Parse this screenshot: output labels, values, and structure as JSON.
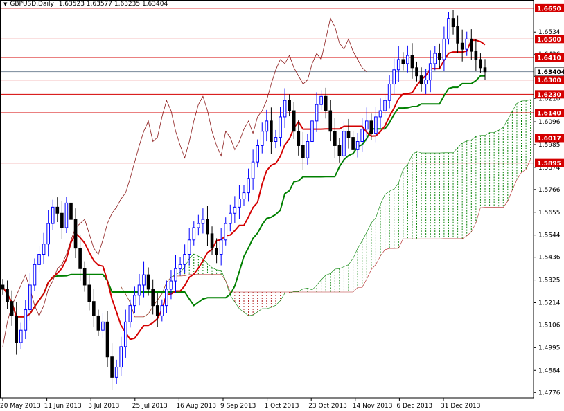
{
  "header": {
    "symbol": "GBPUSD,Daily",
    "ohlc": "1.63523 1.63577 1.63235 1.63404"
  },
  "colors": {
    "background": "#ffffff",
    "bull_candle": "#0000ff",
    "bear_candle": "#000000",
    "tenkan": "#d40000",
    "kijun": "#008000",
    "chikou": "#8b1a1a",
    "cloud_bull": "#008000",
    "cloud_bear": "#b22222",
    "level_line": "#d40000",
    "current_line": "#778899"
  },
  "chart_data": {
    "type": "candlestick",
    "indicator": "Ichimoku Kinko Hyo",
    "x_tick_labels": [
      "20 May 2013",
      "11 Jun 2013",
      "3 Jul 2013",
      "25 Jul 2013",
      "16 Aug 2013",
      "9 Sep 2013",
      "1 Oct 2013",
      "23 Oct 2013",
      "14 Nov 2013",
      "6 Dec 2013",
      "31 Dec 2013"
    ],
    "y_tick_labels": [
      1.6534,
      1.6426,
      1.6318,
      1.621,
      1.6096,
      1.5985,
      1.5874,
      1.5766,
      1.5655,
      1.5544,
      1.5436,
      1.5325,
      1.5214,
      1.5106,
      1.4995,
      1.4884,
      1.4776
    ],
    "ylim": [
      1.475,
      1.669
    ],
    "current_price": 1.63404,
    "horizontal_levels": [
      1.665,
      1.65,
      1.641,
      1.63,
      1.623,
      1.614,
      1.6017,
      1.5895
    ],
    "close": [
      1.528,
      1.522,
      1.515,
      1.502,
      1.508,
      1.518,
      1.53,
      1.54,
      1.545,
      1.55,
      1.56,
      1.568,
      1.565,
      1.558,
      1.57,
      1.562,
      1.548,
      1.538,
      1.53,
      1.522,
      1.515,
      1.508,
      1.512,
      1.495,
      1.485,
      1.49,
      1.5,
      1.512,
      1.52,
      1.525,
      1.53,
      1.535,
      1.528,
      1.52,
      1.515,
      1.52,
      1.528,
      1.532,
      1.538,
      1.54,
      1.545,
      1.552,
      1.558,
      1.56,
      1.562,
      1.555,
      1.548,
      1.545,
      1.552,
      1.56,
      1.565,
      1.568,
      1.572,
      1.575,
      1.582,
      1.59,
      1.598,
      1.605,
      1.61,
      1.6,
      1.602,
      1.612,
      1.62,
      1.615,
      1.605,
      1.598,
      1.592,
      1.6,
      1.61,
      1.618,
      1.622,
      1.615,
      1.605,
      1.598,
      1.593,
      1.605,
      1.602,
      1.596,
      1.6,
      1.606,
      1.61,
      1.604,
      1.612,
      1.615,
      1.62,
      1.628,
      1.635,
      1.64,
      1.638,
      1.642,
      1.636,
      1.632,
      1.628,
      1.63,
      1.638,
      1.643,
      1.64,
      1.65,
      1.66,
      1.656,
      1.648,
      1.645,
      1.65,
      1.644,
      1.64,
      1.636,
      1.634
    ],
    "ichimoku_series": [
      "Tenkan-sen",
      "Kijun-sen",
      "Chikou span",
      "Senkou span A",
      "Senkou span B"
    ],
    "grid": false
  }
}
